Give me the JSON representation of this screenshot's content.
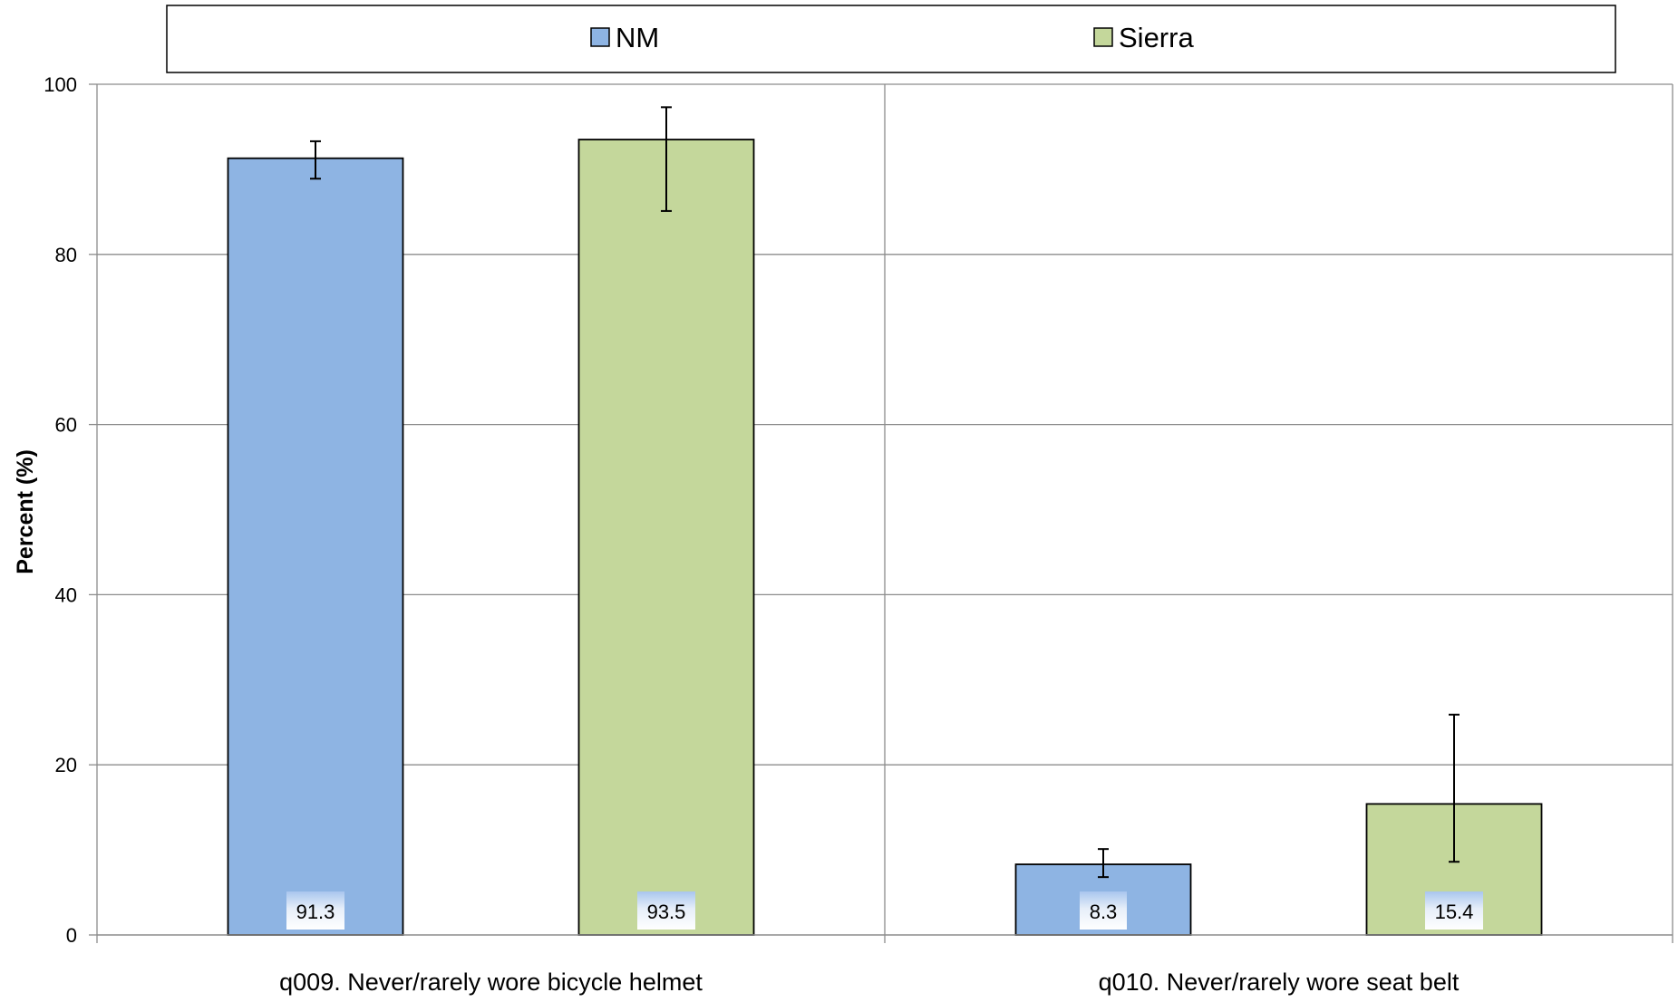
{
  "chart_data": {
    "type": "bar",
    "title": "",
    "xlabel": "",
    "ylabel": "Percent (%)",
    "ylim": [
      0,
      100
    ],
    "yticks": [
      0,
      20,
      40,
      60,
      80,
      100
    ],
    "grid": true,
    "legend_position": "top",
    "categories": [
      "q009. Never/rarely wore bicycle helmet",
      "q010. Never/rarely wore seat belt"
    ],
    "series": [
      {
        "name": "NM",
        "color": "#8EB4E3",
        "values": [
          91.3,
          8.3
        ],
        "error_low": [
          88.9,
          6.8
        ],
        "error_high": [
          93.3,
          10.1
        ],
        "value_labels": [
          "91.3",
          "8.3"
        ]
      },
      {
        "name": "Sierra",
        "color": "#C4D79B",
        "values": [
          93.5,
          15.4
        ],
        "error_low": [
          85.1,
          8.6
        ],
        "error_high": [
          97.3,
          25.9
        ],
        "value_labels": [
          "93.5",
          "15.4"
        ]
      }
    ]
  }
}
